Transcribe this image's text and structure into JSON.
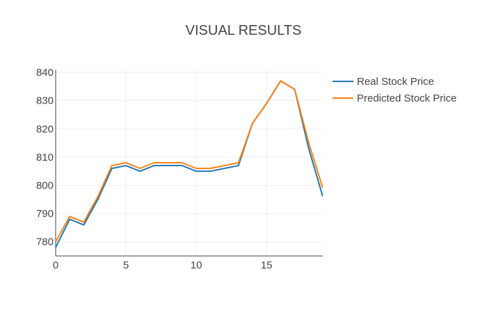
{
  "chart_data": {
    "type": "line",
    "title": "VISUAL RESULTS",
    "xlabel": "",
    "ylabel": "",
    "xlim": [
      0,
      19
    ],
    "ylim": [
      775,
      841
    ],
    "x_ticks": [
      0,
      5,
      10,
      15
    ],
    "y_ticks": [
      780,
      790,
      800,
      810,
      820,
      830,
      840
    ],
    "grid": true,
    "legend_position": "top-right",
    "x": [
      0,
      1,
      2,
      3,
      4,
      5,
      6,
      7,
      8,
      9,
      10,
      11,
      12,
      13,
      14,
      15,
      16,
      17,
      18,
      19
    ],
    "series": [
      {
        "name": "Real Stock Price",
        "color": "#1f77b4",
        "values": [
          778,
          788,
          786,
          795,
          806,
          807,
          805,
          807,
          807,
          807,
          805,
          805,
          806,
          807,
          822,
          829,
          837,
          834,
          813,
          796
        ]
      },
      {
        "name": "Predicted Stock Price",
        "color": "#ff7f0e",
        "values": [
          780,
          789,
          787,
          796,
          807,
          808,
          806,
          808,
          808,
          808,
          806,
          806,
          807,
          808,
          822,
          829,
          837,
          834,
          815,
          799
        ]
      }
    ]
  }
}
